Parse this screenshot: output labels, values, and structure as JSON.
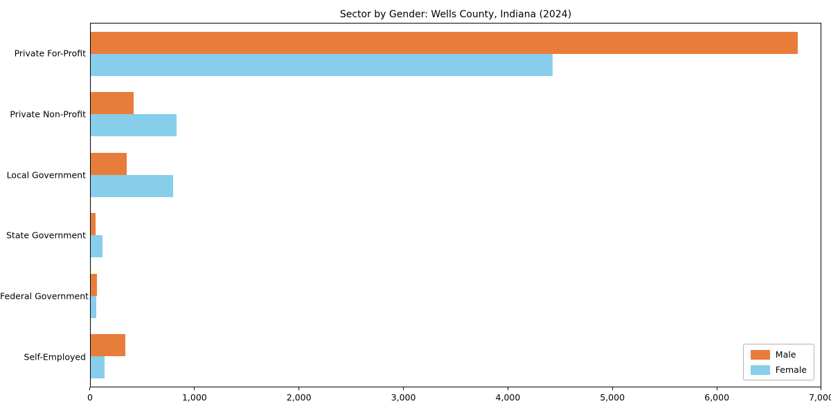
{
  "title": "Sector by Gender: Wells County, Indiana (2024)",
  "chart_data": {
    "type": "bar",
    "orientation": "horizontal",
    "title": "Sector by Gender: Wells County, Indiana (2024)",
    "categories": [
      "Private For-Profit",
      "Private Non-Profit",
      "Local Government",
      "State Government",
      "Federal Government",
      "Self-Employed"
    ],
    "series": [
      {
        "name": "Male",
        "color": "#E87D3B",
        "values": [
          6780,
          410,
          345,
          45,
          60,
          330
        ]
      },
      {
        "name": "Female",
        "color": "#87CEEB",
        "values": [
          4430,
          825,
          790,
          115,
          50,
          130
        ]
      }
    ],
    "xlabel": "",
    "ylabel": "",
    "xlim": [
      0,
      7000
    ],
    "xticks": [
      0,
      1000,
      2000,
      3000,
      4000,
      5000,
      6000,
      7000
    ],
    "xtick_labels": [
      "0",
      "1,000",
      "2,000",
      "3,000",
      "4,000",
      "5,000",
      "6,000",
      "7,000"
    ],
    "grid": false,
    "legend_position": "lower right"
  }
}
